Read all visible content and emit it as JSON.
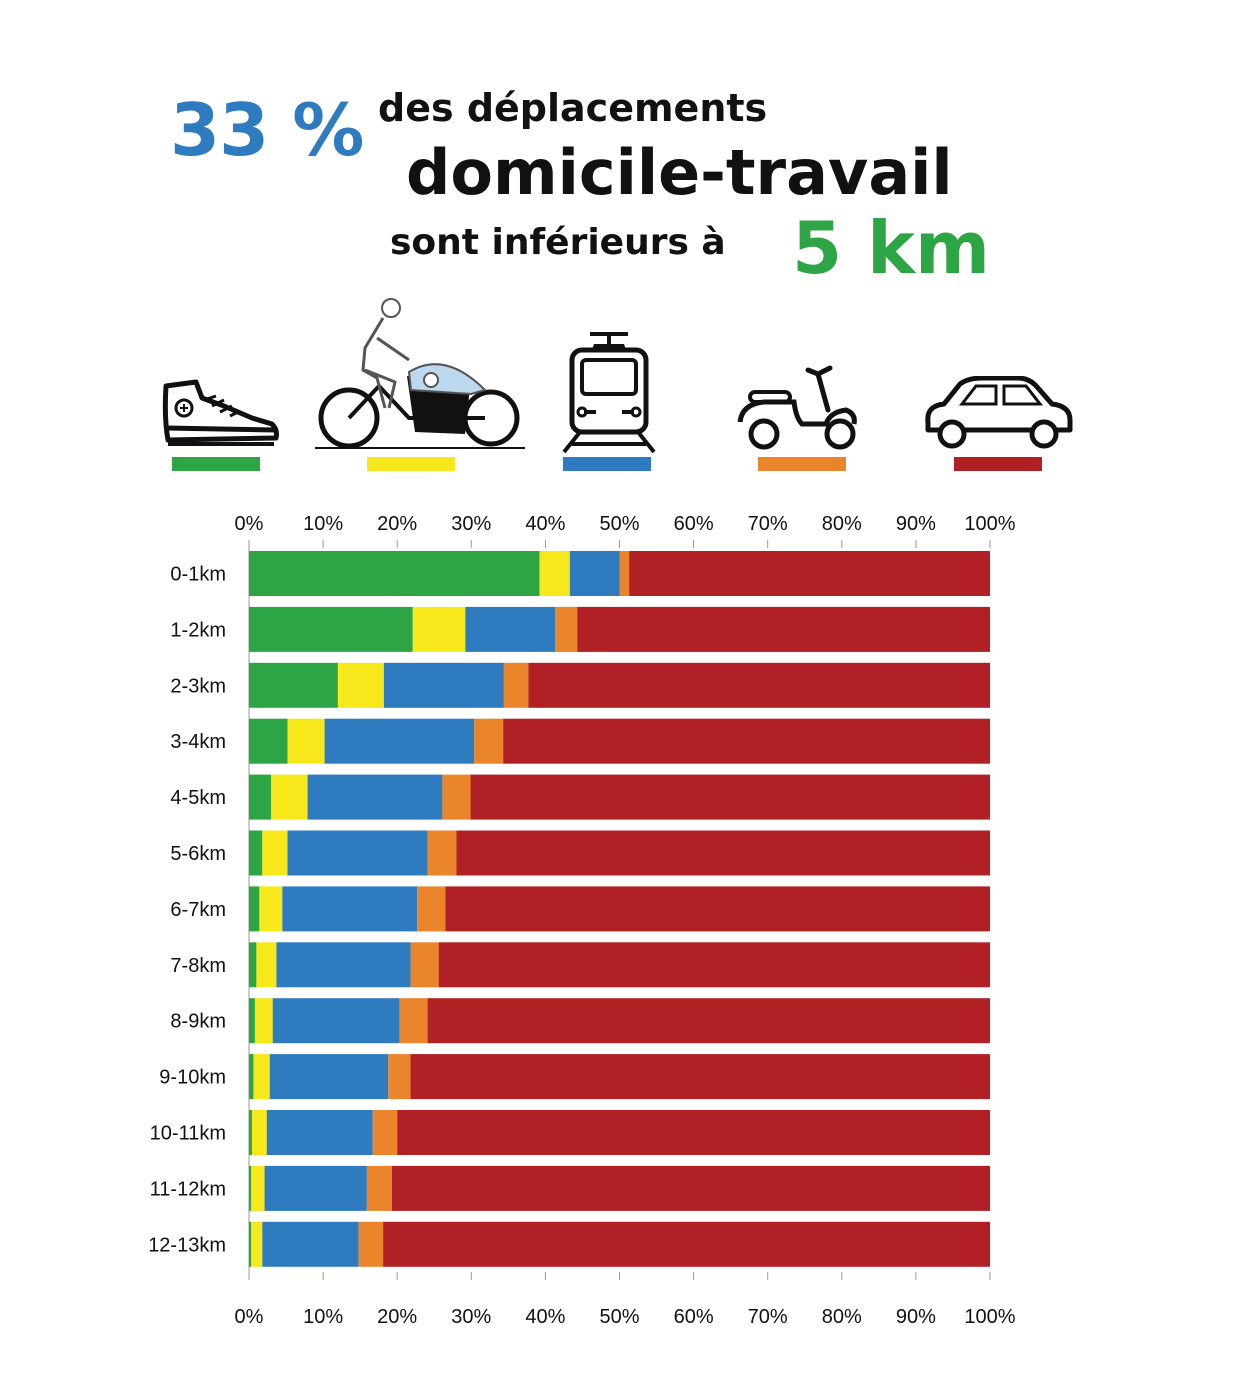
{
  "headline": {
    "percent": "33 %",
    "line1": "des déplacements",
    "line2": "domicile-travail",
    "line3": "sont inférieurs à",
    "distance": "5 km"
  },
  "colors": {
    "walk": "#2ea544",
    "bike": "#f7e81c",
    "transit": "#2e7bbf",
    "two_wheeler": "#ea852c",
    "car": "#b02024",
    "headline_pct": "#2e7bbf",
    "headline_dist": "#2ea544"
  },
  "legend_icons": [
    "sneaker-icon",
    "cargo-bike-icon",
    "tram-icon",
    "scooter-icon",
    "car-icon"
  ],
  "chart_data": {
    "type": "bar",
    "orientation": "horizontal",
    "stacked": true,
    "categories": [
      "0-1km",
      "1-2km",
      "2-3km",
      "3-4km",
      "4-5km",
      "5-6km",
      "6-7km",
      "7-8km",
      "8-9km",
      "9-10km",
      "10-11km",
      "11-12km",
      "12-13km"
    ],
    "series": [
      {
        "color": "#2ea544",
        "values": [
          39.2,
          22.1,
          12.0,
          5.2,
          3.0,
          1.8,
          1.4,
          1.0,
          0.8,
          0.6,
          0.4,
          0.3,
          0.3
        ]
      },
      {
        "color": "#f7e81c",
        "values": [
          4.1,
          7.1,
          6.2,
          5.0,
          4.9,
          3.4,
          3.1,
          2.7,
          2.4,
          2.2,
          2.0,
          1.8,
          1.5
        ]
      },
      {
        "color": "#2e7bbf",
        "values": [
          6.7,
          12.1,
          16.2,
          20.2,
          18.2,
          18.9,
          18.2,
          18.1,
          17.1,
          16.0,
          14.3,
          13.8,
          13.0
        ]
      },
      {
        "color": "#ea852c",
        "values": [
          1.3,
          3.0,
          3.3,
          3.9,
          3.8,
          3.9,
          3.8,
          3.8,
          3.8,
          3.0,
          3.3,
          3.4,
          3.3
        ]
      },
      {
        "color": "#b02024",
        "values": [
          48.7,
          55.7,
          62.3,
          65.7,
          70.1,
          72.0,
          73.5,
          74.4,
          75.9,
          78.2,
          80.0,
          80.7,
          81.9
        ]
      }
    ],
    "xlim": [
      0,
      100
    ],
    "xticks": [
      "0%",
      "10%",
      "20%",
      "30%",
      "40%",
      "50%",
      "60%",
      "70%",
      "80%",
      "90%",
      "100%"
    ],
    "tick_labels_top_and_bottom": true,
    "grid": false
  }
}
